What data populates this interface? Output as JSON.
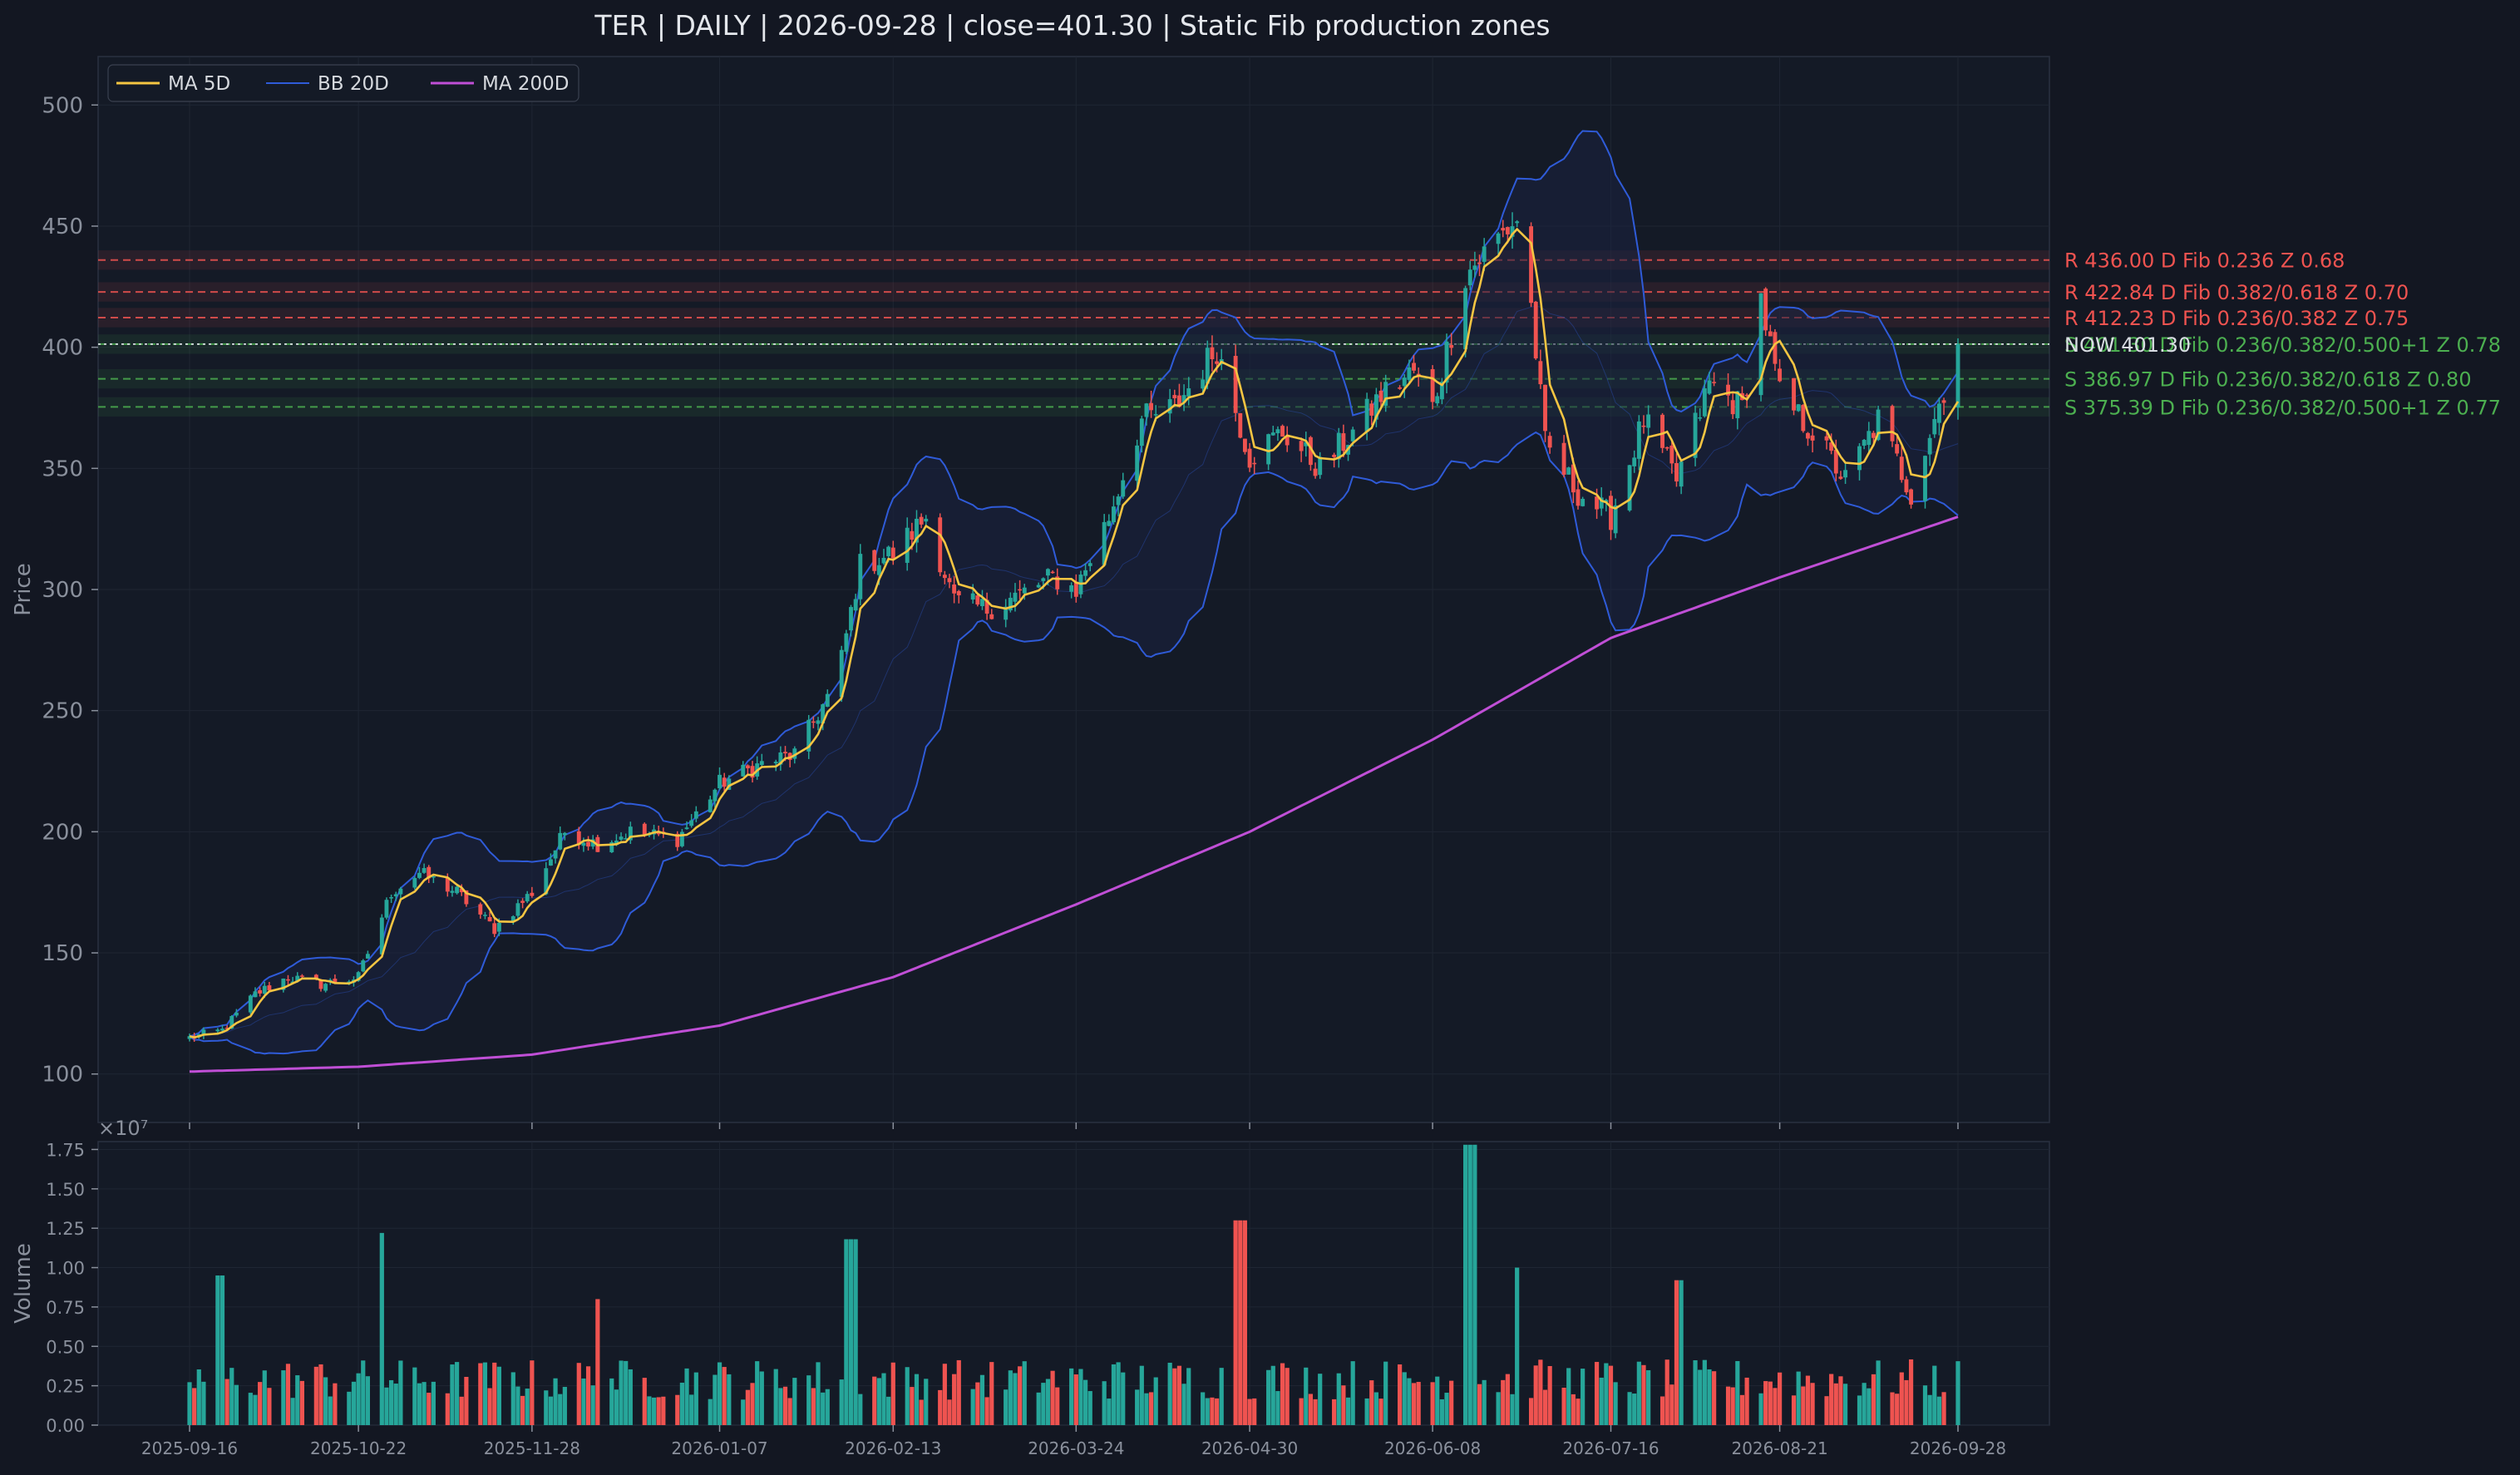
{
  "title": "TER  |  DAILY  |  2026-09-28  |  close=401.30  |  Static Fib production zones",
  "colors": {
    "background": "#131722",
    "panel": "#141a26",
    "grid": "#1f2633",
    "axis_text": "#8a909c",
    "up": "#26a69a",
    "down": "#ef5350",
    "ma5": "#f5c542",
    "bb": "#2f5bd8",
    "bb_fill": "#1a2240",
    "ma200": "#c04fd6",
    "resistance": "#ef5350",
    "support": "#4caf50",
    "now": "#d9dde3"
  },
  "chart_data": [
    {
      "type": "candlestick",
      "name": "price",
      "ylabel": "Price",
      "ylim": [
        80,
        520
      ],
      "yticks": [
        100,
        150,
        200,
        250,
        300,
        350,
        400,
        450,
        500
      ],
      "grid": true,
      "legend_placement": "top-left",
      "legend": [
        "MA 5D",
        "BB 20D",
        "MA 200D"
      ],
      "x_start": "2025-09-16",
      "x_end": "2026-09-28",
      "xticks": [
        "2025-09-16",
        "2025-10-22",
        "2025-11-28",
        "2026-01-07",
        "2026-02-13",
        "2026-03-24",
        "2026-04-30",
        "2026-06-08",
        "2026-07-16",
        "2026-08-21",
        "2026-09-28"
      ],
      "close_anchors": [
        [
          "2025-09-16",
          115
        ],
        [
          "2025-09-23",
          118
        ],
        [
          "2025-09-30",
          133
        ],
        [
          "2025-10-07",
          140
        ],
        [
          "2025-10-14",
          137
        ],
        [
          "2025-10-22",
          140
        ],
        [
          "2025-10-29",
          175
        ],
        [
          "2025-11-04",
          183
        ],
        [
          "2025-11-12",
          175
        ],
        [
          "2025-11-20",
          160
        ],
        [
          "2025-11-28",
          175
        ],
        [
          "2025-12-05",
          200
        ],
        [
          "2025-12-12",
          195
        ],
        [
          "2025-12-19",
          200
        ],
        [
          "2025-12-29",
          197
        ],
        [
          "2026-01-07",
          220
        ],
        [
          "2026-01-16",
          228
        ],
        [
          "2026-01-23",
          232
        ],
        [
          "2026-02-01",
          262
        ],
        [
          "2026-02-06",
          310
        ],
        [
          "2026-02-13",
          315
        ],
        [
          "2026-02-20",
          330
        ],
        [
          "2026-02-26",
          295
        ],
        [
          "2026-03-05",
          292
        ],
        [
          "2026-03-12",
          298
        ],
        [
          "2026-03-19",
          305
        ],
        [
          "2026-03-24",
          300
        ],
        [
          "2026-03-31",
          330
        ],
        [
          "2026-04-07",
          370
        ],
        [
          "2026-04-14",
          375
        ],
        [
          "2026-04-23",
          400
        ],
        [
          "2026-04-30",
          355
        ],
        [
          "2026-05-07",
          365
        ],
        [
          "2026-05-15",
          350
        ],
        [
          "2026-05-22",
          365
        ],
        [
          "2026-05-28",
          380
        ],
        [
          "2026-06-04",
          390
        ],
        [
          "2026-06-08",
          375
        ],
        [
          "2026-06-15",
          430
        ],
        [
          "2026-06-22",
          445
        ],
        [
          "2026-06-27",
          455
        ],
        [
          "2026-07-02",
          360
        ],
        [
          "2026-07-09",
          340
        ],
        [
          "2026-07-16",
          330
        ],
        [
          "2026-07-23",
          370
        ],
        [
          "2026-07-30",
          345
        ],
        [
          "2026-08-06",
          385
        ],
        [
          "2026-08-13",
          375
        ],
        [
          "2026-08-17",
          420
        ],
        [
          "2026-08-21",
          380
        ],
        [
          "2026-08-28",
          365
        ],
        [
          "2026-09-04",
          345
        ],
        [
          "2026-09-11",
          370
        ],
        [
          "2026-09-18",
          340
        ],
        [
          "2026-09-28",
          401.3
        ]
      ],
      "ma200_anchors": [
        [
          "2025-09-16",
          101
        ],
        [
          "2025-10-22",
          103
        ],
        [
          "2025-11-28",
          108
        ],
        [
          "2026-01-07",
          120
        ],
        [
          "2026-02-13",
          140
        ],
        [
          "2026-03-24",
          170
        ],
        [
          "2026-04-30",
          200
        ],
        [
          "2026-06-08",
          238
        ],
        [
          "2026-07-16",
          280
        ],
        [
          "2026-08-21",
          305
        ],
        [
          "2026-09-28",
          330
        ]
      ],
      "levels": [
        {
          "label": "R 436.00  D  Fib 0.236  Z 0.68",
          "value": 436.0,
          "kind": "resistance"
        },
        {
          "label": "R 422.84  D  Fib 0.382/0.618  Z 0.70",
          "value": 422.84,
          "kind": "resistance"
        },
        {
          "label": "R 412.23  D  Fib 0.236/0.382  Z 0.75",
          "value": 412.23,
          "kind": "resistance"
        },
        {
          "label": "S 401.30  D  Fib 0.236/0.382/0.500+1  Z 0.78",
          "value": 401.3,
          "kind": "support"
        },
        {
          "label": "S 386.97  D  Fib 0.236/0.382/0.618  Z 0.80",
          "value": 386.97,
          "kind": "support"
        },
        {
          "label": "S 375.39  D  Fib 0.236/0.382/0.500+1  Z 0.77",
          "value": 375.39,
          "kind": "support"
        }
      ],
      "now_label": "NOW 401.30",
      "close": 401.3
    },
    {
      "type": "bar",
      "name": "volume",
      "ylabel": "Volume",
      "ylim": [
        0,
        18000000.0
      ],
      "yticks": [
        "0.00",
        "0.25",
        "0.50",
        "0.75",
        "1.00",
        "1.25",
        "1.50",
        "1.75"
      ],
      "scale_label": "×10⁷",
      "spikes": [
        [
          "2025-09-22",
          9500000.0
        ],
        [
          "2025-10-26",
          12200000.0
        ],
        [
          "2025-12-13",
          8000000.0
        ],
        [
          "2026-02-04",
          11800000.0
        ],
        [
          "2026-04-28",
          13000000.0
        ],
        [
          "2026-06-16",
          17800000.0
        ],
        [
          "2026-06-27",
          10000000.0
        ],
        [
          "2026-07-31",
          9200000.0
        ]
      ]
    }
  ]
}
